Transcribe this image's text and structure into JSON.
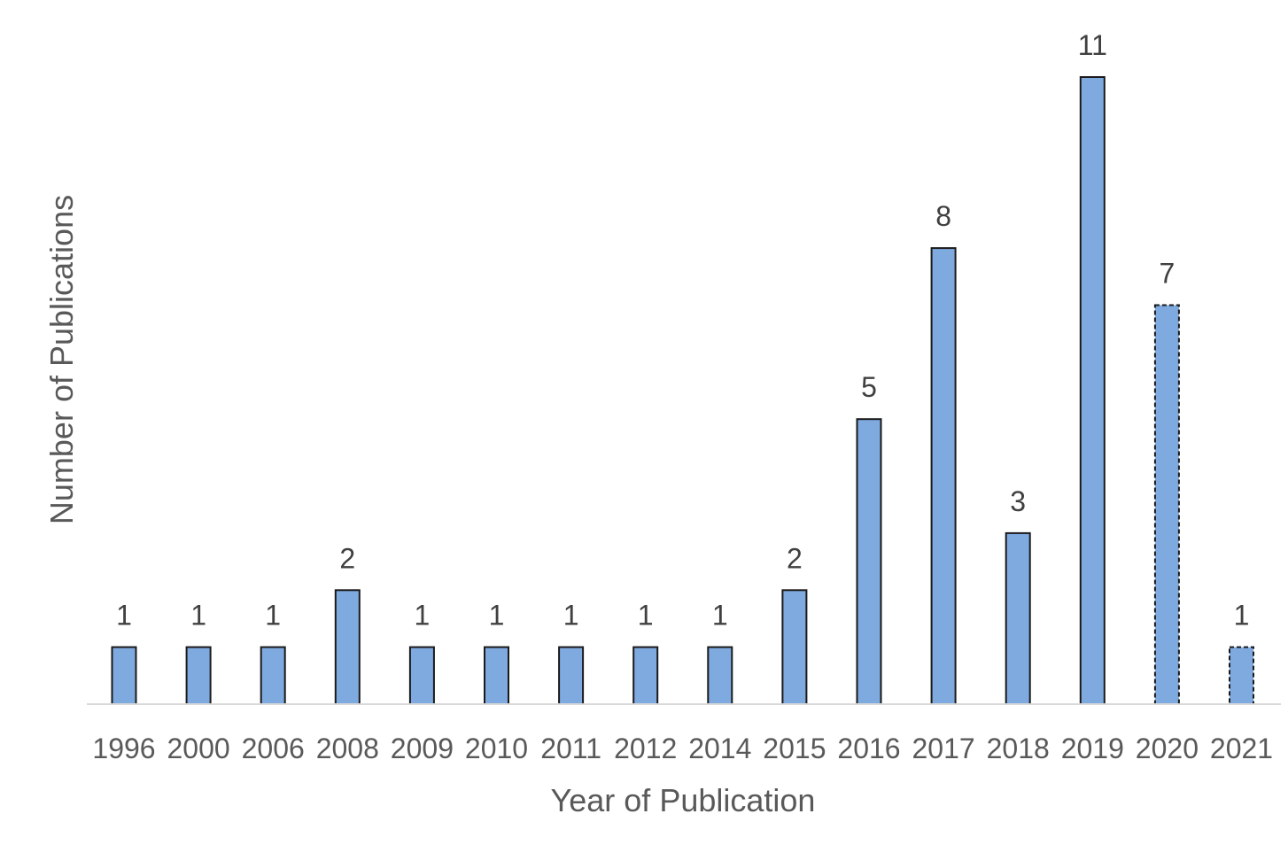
{
  "chart_data": {
    "type": "bar",
    "title": "",
    "xlabel": "Year of Publication",
    "ylabel": "Number of Publications",
    "categories": [
      "1996",
      "2000",
      "2006",
      "2008",
      "2009",
      "2010",
      "2011",
      "2012",
      "2014",
      "2015",
      "2016",
      "2017",
      "2018",
      "2019",
      "2020",
      "2021"
    ],
    "values": [
      1,
      1,
      1,
      2,
      1,
      1,
      1,
      1,
      1,
      2,
      5,
      8,
      3,
      11,
      7,
      1
    ],
    "dashed_outline_categories": [
      "2020",
      "2021"
    ],
    "data_labels": true,
    "grid": false,
    "legend": "none",
    "ylim": [
      0,
      11
    ],
    "colors": {
      "bar_fill": "#7faae0",
      "bar_stroke": "#1a1a1a",
      "axis": "#d9d9d9"
    }
  }
}
